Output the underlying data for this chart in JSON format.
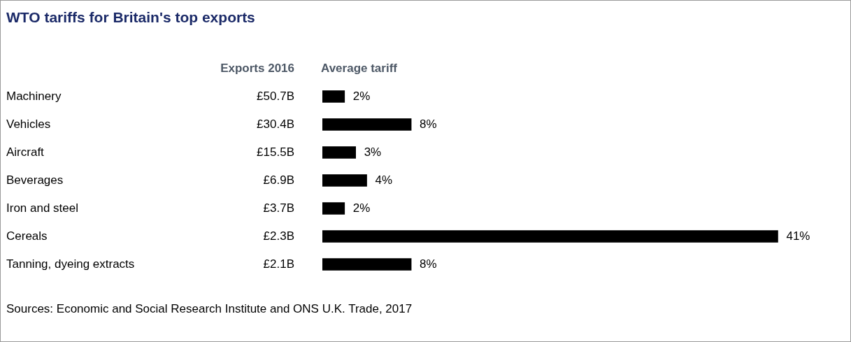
{
  "chart_data": {
    "type": "bar",
    "orientation": "horizontal",
    "title": "WTO tariffs for Britain's top exports",
    "xlabel": "Average tariff",
    "categories": [
      "Machinery",
      "Vehicles",
      "Aircraft",
      "Beverages",
      "Iron and steel",
      "Cereals",
      "Tanning, dyeing extracts"
    ],
    "values": [
      2,
      8,
      3,
      4,
      2,
      41,
      8
    ],
    "value_labels": [
      "2%",
      "8%",
      "3%",
      "4%",
      "2%",
      "41%",
      "8%"
    ],
    "color": "#000000",
    "legend": false,
    "tick_labels": "y",
    "annotations": [
      "Exports 2016",
      "£50.7B",
      "£30.4B",
      "£15.5B",
      "£6.9B",
      "£3.7B",
      "£2.3B",
      "£2.1B",
      "Sources: Economic and Social Research Institute and ONS U.K. Trade, 2017"
    ]
  }
}
